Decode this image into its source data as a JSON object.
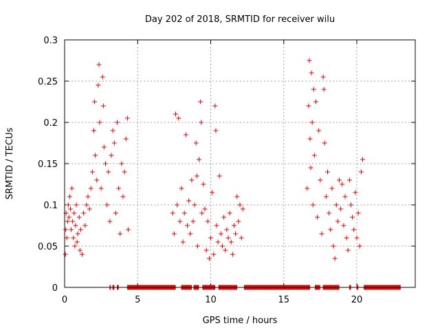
{
  "chart_data": {
    "type": "scatter",
    "title": "Day 202 of 2018, SRMTID for receiver wilu",
    "xlabel": "GPS time / hours",
    "ylabel": "SRMTID / TECUs",
    "xlim": [
      0,
      24
    ],
    "ylim": [
      0,
      0.3
    ],
    "xticks": [
      0,
      5,
      10,
      15,
      20
    ],
    "yticks": [
      0,
      0.05,
      0.1,
      0.15,
      0.2,
      0.25,
      0.3
    ],
    "grid": true,
    "marker": "+",
    "color": "#dd0000",
    "series": [
      {
        "name": "SRMTID",
        "points": [
          [
            0.05,
            0.04
          ],
          [
            0.08,
            0.07
          ],
          [
            0.1,
            0.09
          ],
          [
            0.15,
            0.06
          ],
          [
            0.2,
            0.08
          ],
          [
            0.25,
            0.1
          ],
          [
            0.3,
            0.085
          ],
          [
            0.35,
            0.11
          ],
          [
            0.4,
            0.095
          ],
          [
            0.45,
            0.07
          ],
          [
            0.5,
            0.12
          ],
          [
            0.55,
            0.08
          ],
          [
            0.6,
            0.06
          ],
          [
            0.65,
            0.09
          ],
          [
            0.7,
            0.05
          ],
          [
            0.75,
            0.075
          ],
          [
            0.8,
            0.1
          ],
          [
            0.85,
            0.055
          ],
          [
            0.9,
            0.065
          ],
          [
            1.0,
            0.085
          ],
          [
            1.05,
            0.045
          ],
          [
            1.1,
            0.07
          ],
          [
            1.2,
            0.04
          ],
          [
            1.3,
            0.09
          ],
          [
            1.4,
            0.075
          ],
          [
            1.5,
            0.1
          ],
          [
            1.6,
            0.11
          ],
          [
            1.7,
            0.095
          ],
          [
            1.8,
            0.12
          ],
          [
            1.9,
            0.14
          ],
          [
            2.0,
            0.19
          ],
          [
            2.05,
            0.225
          ],
          [
            2.1,
            0.16
          ],
          [
            2.2,
            0.13
          ],
          [
            2.3,
            0.245
          ],
          [
            2.35,
            0.27
          ],
          [
            2.4,
            0.2
          ],
          [
            2.5,
            0.12
          ],
          [
            2.6,
            0.255
          ],
          [
            2.65,
            0.22
          ],
          [
            2.7,
            0.17
          ],
          [
            2.8,
            0.15
          ],
          [
            2.9,
            0.1
          ],
          [
            3.0,
            0.14
          ],
          [
            3.1,
            0.08
          ],
          [
            3.2,
            0.16
          ],
          [
            3.3,
            0.19
          ],
          [
            3.4,
            0.175
          ],
          [
            3.5,
            0.09
          ],
          [
            3.6,
            0.2
          ],
          [
            3.7,
            0.12
          ],
          [
            3.8,
            0.065
          ],
          [
            3.9,
            0.15
          ],
          [
            4.0,
            0.11
          ],
          [
            4.1,
            0.14
          ],
          [
            4.2,
            0.18
          ],
          [
            4.3,
            0.205
          ],
          [
            4.35,
            0.07
          ],
          [
            7.4,
            0.09
          ],
          [
            7.5,
            0.065
          ],
          [
            7.6,
            0.21
          ],
          [
            7.7,
            0.1
          ],
          [
            7.8,
            0.205
          ],
          [
            7.9,
            0.08
          ],
          [
            8.0,
            0.12
          ],
          [
            8.1,
            0.055
          ],
          [
            8.2,
            0.09
          ],
          [
            8.3,
            0.185
          ],
          [
            8.4,
            0.075
          ],
          [
            8.5,
            0.105
          ],
          [
            8.6,
            0.065
          ],
          [
            8.7,
            0.13
          ],
          [
            8.8,
            0.08
          ],
          [
            8.9,
            0.1
          ],
          [
            9.0,
            0.175
          ],
          [
            9.05,
            0.135
          ],
          [
            9.1,
            0.05
          ],
          [
            9.2,
            0.155
          ],
          [
            9.3,
            0.225
          ],
          [
            9.35,
            0.2
          ],
          [
            9.4,
            0.09
          ],
          [
            9.5,
            0.125
          ],
          [
            9.6,
            0.095
          ],
          [
            9.7,
            0.045
          ],
          [
            9.8,
            0.08
          ],
          [
            9.9,
            0.035
          ],
          [
            10.0,
            0.06
          ],
          [
            10.1,
            0.115
          ],
          [
            10.2,
            0.04
          ],
          [
            10.3,
            0.22
          ],
          [
            10.35,
            0.19
          ],
          [
            10.4,
            0.075
          ],
          [
            10.5,
            0.055
          ],
          [
            10.6,
            0.135
          ],
          [
            10.7,
            0.065
          ],
          [
            10.8,
            0.05
          ],
          [
            10.9,
            0.085
          ],
          [
            11.0,
            0.045
          ],
          [
            11.1,
            0.07
          ],
          [
            11.2,
            0.06
          ],
          [
            11.3,
            0.09
          ],
          [
            11.4,
            0.055
          ],
          [
            11.5,
            0.04
          ],
          [
            11.6,
            0.075
          ],
          [
            11.7,
            0.065
          ],
          [
            11.8,
            0.11
          ],
          [
            11.9,
            0.08
          ],
          [
            12.0,
            0.1
          ],
          [
            12.1,
            0.06
          ],
          [
            12.2,
            0.095
          ],
          [
            16.6,
            0.12
          ],
          [
            16.7,
            0.22
          ],
          [
            16.75,
            0.275
          ],
          [
            16.8,
            0.18
          ],
          [
            16.85,
            0.145
          ],
          [
            16.9,
            0.26
          ],
          [
            16.95,
            0.2
          ],
          [
            17.0,
            0.1
          ],
          [
            17.05,
            0.24
          ],
          [
            17.1,
            0.16
          ],
          [
            17.2,
            0.225
          ],
          [
            17.3,
            0.085
          ],
          [
            17.4,
            0.19
          ],
          [
            17.5,
            0.13
          ],
          [
            17.6,
            0.065
          ],
          [
            17.7,
            0.255
          ],
          [
            17.75,
            0.24
          ],
          [
            17.8,
            0.175
          ],
          [
            17.9,
            0.11
          ],
          [
            18.0,
            0.14
          ],
          [
            18.1,
            0.09
          ],
          [
            18.2,
            0.07
          ],
          [
            18.3,
            0.12
          ],
          [
            18.4,
            0.05
          ],
          [
            18.5,
            0.035
          ],
          [
            18.6,
            0.1
          ],
          [
            18.7,
            0.08
          ],
          [
            18.8,
            0.13
          ],
          [
            18.9,
            0.095
          ],
          [
            19.0,
            0.125
          ],
          [
            19.1,
            0.075
          ],
          [
            19.2,
            0.11
          ],
          [
            19.3,
            0.06
          ],
          [
            19.4,
            0.045
          ],
          [
            19.5,
            0.13
          ],
          [
            19.6,
            0.1
          ],
          [
            19.7,
            0.085
          ],
          [
            19.8,
            0.07
          ],
          [
            19.9,
            0.115
          ],
          [
            20.0,
            0.06
          ],
          [
            20.1,
            0.09
          ],
          [
            20.2,
            0.05
          ],
          [
            20.3,
            0.14
          ],
          [
            20.4,
            0.155
          ]
        ]
      }
    ],
    "zero_segments": [
      [
        3.1,
        3.15
      ],
      [
        3.3,
        3.4
      ],
      [
        3.6,
        3.7
      ],
      [
        4.3,
        7.6
      ],
      [
        8.0,
        8.7
      ],
      [
        8.85,
        9.2
      ],
      [
        9.45,
        10.3
      ],
      [
        10.55,
        11.8
      ],
      [
        12.3,
        16.8
      ],
      [
        17.15,
        17.5
      ],
      [
        17.7,
        18.8
      ],
      [
        19.5,
        19.6
      ],
      [
        20.0,
        20.1
      ],
      [
        20.5,
        23.0
      ]
    ]
  }
}
